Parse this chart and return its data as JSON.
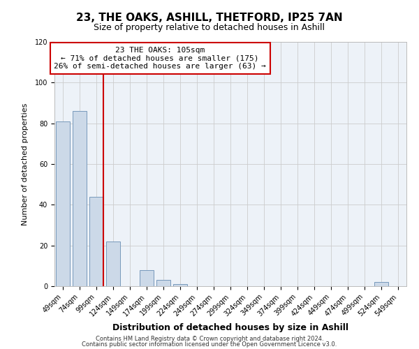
{
  "title": "23, THE OAKS, ASHILL, THETFORD, IP25 7AN",
  "subtitle": "Size of property relative to detached houses in Ashill",
  "xlabel": "Distribution of detached houses by size in Ashill",
  "ylabel": "Number of detached properties",
  "bar_color": "#ccd9e8",
  "bar_edge_color": "#7799bb",
  "grid_color": "#cccccc",
  "bg_color": "#edf2f8",
  "annotation_box_color": "#cc0000",
  "vline_color": "#cc0000",
  "categories": [
    "49sqm",
    "74sqm",
    "99sqm",
    "124sqm",
    "149sqm",
    "174sqm",
    "199sqm",
    "224sqm",
    "249sqm",
    "274sqm",
    "299sqm",
    "324sqm",
    "349sqm",
    "374sqm",
    "399sqm",
    "424sqm",
    "449sqm",
    "474sqm",
    "499sqm",
    "524sqm",
    "549sqm"
  ],
  "values": [
    81,
    86,
    44,
    22,
    0,
    8,
    3,
    1,
    0,
    0,
    0,
    0,
    0,
    0,
    0,
    0,
    0,
    0,
    0,
    2,
    0
  ],
  "annotation_text_line1": "23 THE OAKS: 105sqm",
  "annotation_text_line2": "← 71% of detached houses are smaller (175)",
  "annotation_text_line3": "26% of semi-detached houses are larger (63) →",
  "footer_line1": "Contains HM Land Registry data © Crown copyright and database right 2024.",
  "footer_line2": "Contains public sector information licensed under the Open Government Licence v3.0.",
  "ylim": [
    0,
    120
  ],
  "yticks": [
    0,
    20,
    40,
    60,
    80,
    100,
    120
  ],
  "title_fontsize": 11,
  "subtitle_fontsize": 9,
  "xlabel_fontsize": 9,
  "ylabel_fontsize": 8,
  "tick_fontsize": 7,
  "annot_fontsize": 8,
  "footer_fontsize": 6
}
